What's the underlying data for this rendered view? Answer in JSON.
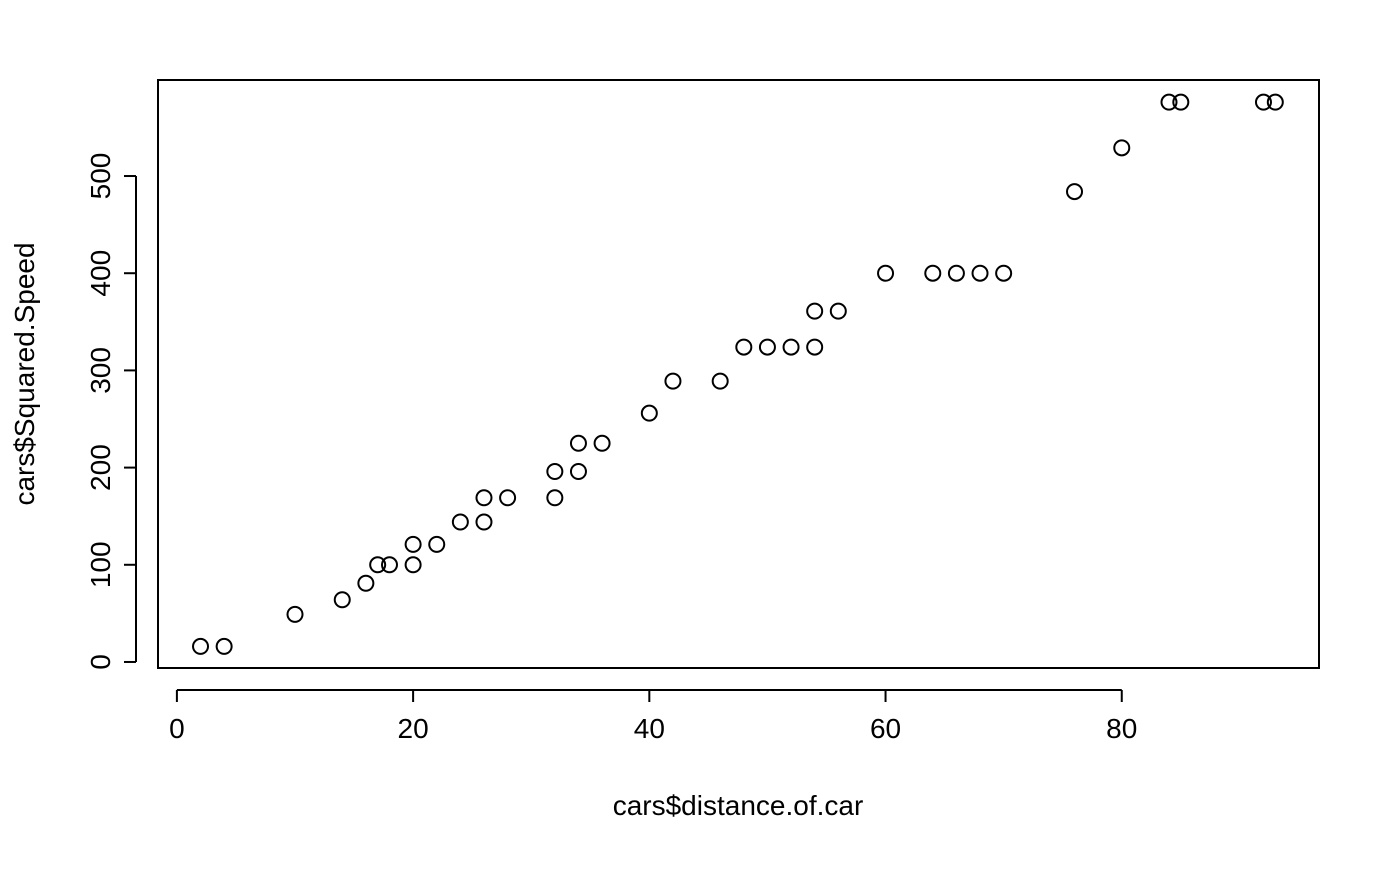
{
  "chart_data": {
    "type": "scatter",
    "x_label": "cars$distance.of.car",
    "y_label": "cars$Squared.Speed",
    "x": [
      2,
      4,
      10,
      14,
      16,
      17,
      18,
      20,
      20,
      22,
      24,
      26,
      26,
      28,
      32,
      32,
      34,
      34,
      36,
      40,
      42,
      46,
      48,
      50,
      52,
      54,
      54,
      56,
      60,
      64,
      66,
      68,
      70,
      76,
      80,
      84,
      85,
      92,
      93
    ],
    "values": [
      16,
      16,
      49,
      64,
      81,
      100,
      100,
      100,
      121,
      121,
      144,
      144,
      169,
      169,
      169,
      196,
      196,
      225,
      225,
      256,
      289,
      289,
      324,
      324,
      324,
      324,
      361,
      361,
      400,
      400,
      400,
      400,
      400,
      484,
      529,
      576,
      576,
      576,
      576
    ],
    "xlim": [
      -1.6,
      96.7
    ],
    "ylim": [
      -6.2,
      598.8
    ],
    "xticks": [
      0,
      20,
      40,
      60,
      80
    ],
    "yticks": [
      0,
      100,
      200,
      300,
      400,
      500
    ],
    "color": "#000000"
  }
}
